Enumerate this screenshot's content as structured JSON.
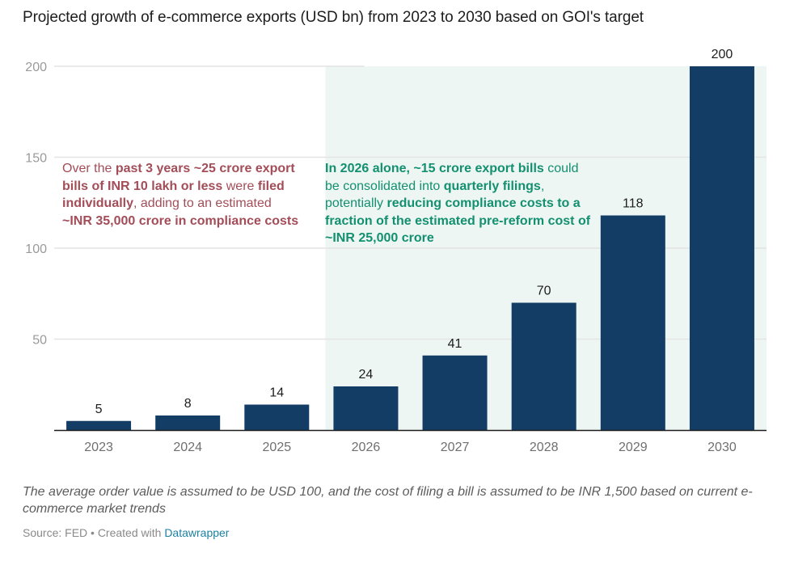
{
  "chart_data": {
    "type": "bar",
    "title": "Projected growth of e-commerce exports (USD bn) from 2023 to 2030 based on GOI's target",
    "xlabel": "",
    "ylabel": "",
    "categories": [
      "2023",
      "2024",
      "2025",
      "2026",
      "2027",
      "2028",
      "2029",
      "2030"
    ],
    "values": [
      5,
      8,
      14,
      24,
      41,
      70,
      118,
      200
    ],
    "value_labels": [
      "5",
      "8",
      "14",
      "24",
      "41",
      "70",
      "118",
      "200"
    ],
    "ylim": [
      0,
      200
    ],
    "yticks": [
      50,
      100,
      150,
      200
    ],
    "ytick_labels": [
      "50",
      "100",
      "150",
      "200"
    ],
    "grid": true,
    "legend": "none",
    "highlight_range": {
      "from": "2026",
      "to": "2030"
    },
    "colors": {
      "bar": "#143d66",
      "highlight_bg": "#eef6f3",
      "grid": "#e4e4e4",
      "axis": "#1d1d1d",
      "tick_label": "#9a9a9a",
      "value_label": "#1d1d1d"
    },
    "annotations": [
      {
        "id": "left",
        "color": "#a34d58",
        "segments": [
          {
            "text": "Over the ",
            "bold": false
          },
          {
            "text": "past 3 years ~25 crore export bills of INR 10 lakh or less",
            "bold": true
          },
          {
            "text": " were ",
            "bold": false
          },
          {
            "text": "filed individually",
            "bold": true
          },
          {
            "text": ", adding to an estimated ",
            "bold": false
          },
          {
            "text": "~INR 35,000 crore in compliance costs",
            "bold": true
          }
        ]
      },
      {
        "id": "right",
        "color": "#12906f",
        "segments": [
          {
            "text": "In 2026 alone, ~15 crore export bills",
            "bold": true
          },
          {
            "text": " could be consolidated into ",
            "bold": false
          },
          {
            "text": "quarterly filings",
            "bold": true
          },
          {
            "text": ", potentially ",
            "bold": false
          },
          {
            "text": "reducing compliance costs to a fraction of the estimated pre-reform cost of ~INR 25,000 crore",
            "bold": true
          }
        ]
      }
    ]
  },
  "notes": "The average order value is assumed to be USD 100, and the cost of filing a bill is assumed to be INR 1,500 based on current e-commerce market trends",
  "footer": {
    "source_label": "Source: FED",
    "created_with": " • Created with ",
    "tool_link": "Datawrapper"
  }
}
